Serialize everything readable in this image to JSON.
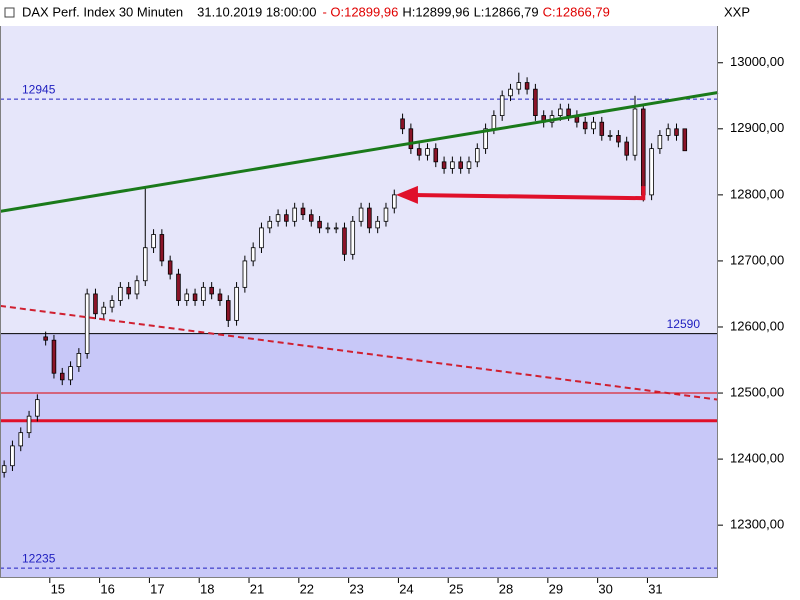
{
  "chart_data": {
    "type": "candlestick",
    "title": "DAX Perf. Index 30 Minuten",
    "timestamp": "31.10.2019 18:00:00",
    "ohlc_labels": [
      "- O:12899,96",
      "H:12899,96",
      "L:12866,79",
      "C:12866,79"
    ],
    "ohlc_label_colors": [
      "#e00000",
      "#000000",
      "#000000",
      "#e00000"
    ],
    "symbol": "XXP",
    "up_color": "#ffffff",
    "down_color": "#8a1428",
    "upper_background": "#e6e6fa",
    "lower_background": "#c8c8f8",
    "x": [
      0,
      1,
      2,
      3,
      4,
      5,
      6,
      7,
      8,
      9,
      10,
      11,
      12,
      13,
      14,
      15,
      16,
      17,
      18,
      19,
      20,
      21,
      22,
      23,
      24,
      25,
      26,
      27,
      28,
      29,
      30,
      31,
      32,
      33,
      34,
      35,
      36,
      37,
      38,
      39,
      40,
      41,
      42,
      43,
      44,
      45,
      46,
      47,
      48,
      49,
      50,
      51,
      52,
      53,
      54,
      55,
      56,
      57,
      58,
      59,
      60,
      61,
      62,
      63,
      64,
      65,
      66,
      67,
      68,
      69,
      70,
      71,
      72,
      73,
      74,
      75,
      76,
      77,
      78,
      79,
      80,
      81,
      82
    ],
    "open": [
      12380,
      12390,
      12420,
      12440,
      12465,
      12585,
      12580,
      12530,
      12520,
      12540,
      12560,
      12650,
      12620,
      12630,
      12640,
      12660,
      12650,
      12670,
      12720,
      12740,
      12700,
      12680,
      12640,
      12650,
      12640,
      12660,
      12650,
      12640,
      12610,
      12660,
      12700,
      12720,
      12750,
      12760,
      12770,
      12760,
      12780,
      12770,
      12760,
      12750,
      12750,
      12750,
      12710,
      12760,
      12780,
      12750,
      12760,
      12780,
      12915,
      12900,
      12870,
      12860,
      12870,
      12850,
      12840,
      12850,
      12840,
      12850,
      12870,
      12900,
      12920,
      12950,
      12960,
      12970,
      12960,
      12920,
      12910,
      12920,
      12930,
      12920,
      12910,
      12900,
      12910,
      12890,
      12890,
      12880,
      12860,
      12930,
      12800,
      12870,
      12890,
      12900,
      12899.96
    ],
    "high": [
      12398,
      12428,
      12448,
      12473,
      12498,
      12593,
      12588,
      12538,
      12548,
      12568,
      12658,
      12658,
      12638,
      12648,
      12668,
      12668,
      12678,
      12810,
      12748,
      12748,
      12708,
      12688,
      12658,
      12658,
      12668,
      12668,
      12658,
      12648,
      12668,
      12708,
      12728,
      12758,
      12768,
      12778,
      12778,
      12788,
      12788,
      12778,
      12768,
      12758,
      12758,
      12758,
      12768,
      12788,
      12788,
      12768,
      12788,
      12808,
      12923,
      12908,
      12878,
      12878,
      12878,
      12858,
      12858,
      12858,
      12858,
      12878,
      12908,
      12928,
      12958,
      12968,
      12985,
      12978,
      12968,
      12928,
      12928,
      12938,
      12938,
      12928,
      12918,
      12918,
      12918,
      12898,
      12898,
      12888,
      12950,
      12938,
      12878,
      12898,
      12908,
      12908,
      12899.96
    ],
    "low": [
      12372,
      12382,
      12412,
      12432,
      12457,
      12572,
      12522,
      12512,
      12512,
      12532,
      12552,
      12612,
      12612,
      12622,
      12632,
      12642,
      12642,
      12662,
      12712,
      12692,
      12672,
      12632,
      12632,
      12632,
      12632,
      12642,
      12632,
      12600,
      12602,
      12652,
      12692,
      12712,
      12742,
      12752,
      12752,
      12752,
      12762,
      12752,
      12742,
      12742,
      12742,
      12700,
      12702,
      12752,
      12742,
      12742,
      12752,
      12772,
      12892,
      12862,
      12852,
      12852,
      12842,
      12832,
      12832,
      12832,
      12832,
      12842,
      12862,
      12892,
      12912,
      12942,
      12952,
      12952,
      12912,
      12902,
      12902,
      12912,
      12912,
      12902,
      12892,
      12892,
      12882,
      12882,
      12872,
      12852,
      12852,
      12790,
      12792,
      12862,
      12882,
      12882,
      12866.79
    ],
    "close": [
      12390,
      12420,
      12440,
      12465,
      12490,
      12580,
      12530,
      12520,
      12540,
      12560,
      12650,
      12620,
      12630,
      12640,
      12660,
      12650,
      12670,
      12720,
      12740,
      12700,
      12680,
      12640,
      12650,
      12640,
      12660,
      12650,
      12640,
      12610,
      12660,
      12700,
      12720,
      12750,
      12760,
      12770,
      12760,
      12780,
      12770,
      12760,
      12750,
      12750,
      12750,
      12710,
      12760,
      12780,
      12750,
      12760,
      12780,
      12800,
      12900,
      12870,
      12860,
      12870,
      12850,
      12840,
      12850,
      12840,
      12850,
      12870,
      12900,
      12920,
      12950,
      12960,
      12970,
      12960,
      12920,
      12910,
      12920,
      12930,
      12920,
      12910,
      12900,
      12910,
      12890,
      12890,
      12880,
      12860,
      12930,
      12800,
      12870,
      12890,
      12900,
      12890,
      12866.79
    ],
    "xlim": [
      -0.5,
      86
    ],
    "xticks": [
      {
        "value": 5.5,
        "label": "15"
      },
      {
        "value": 11.5,
        "label": "16"
      },
      {
        "value": 17.5,
        "label": "17"
      },
      {
        "value": 23.5,
        "label": "18"
      },
      {
        "value": 29.5,
        "label": "21"
      },
      {
        "value": 35.5,
        "label": "22"
      },
      {
        "value": 41.5,
        "label": "23"
      },
      {
        "value": 47.5,
        "label": "24"
      },
      {
        "value": 53.5,
        "label": "25"
      },
      {
        "value": 59.5,
        "label": "28"
      },
      {
        "value": 65.5,
        "label": "29"
      },
      {
        "value": 71.5,
        "label": "30"
      },
      {
        "value": 77.5,
        "label": "31"
      }
    ],
    "ylim": [
      12220,
      13095
    ],
    "yticks": [
      {
        "value": 12300,
        "label": "12300,00"
      },
      {
        "value": 12400,
        "label": "12400,00"
      },
      {
        "value": 12500,
        "label": "12500,00"
      },
      {
        "value": 12600,
        "label": "12600,00"
      },
      {
        "value": 12700,
        "label": "12700,00"
      },
      {
        "value": 12800,
        "label": "12800,00"
      },
      {
        "value": 12900,
        "label": "12900,00"
      },
      {
        "value": 13000,
        "label": "13000,00"
      }
    ],
    "hlines": [
      {
        "value": 12945,
        "label": "12945",
        "color": "#2020c0",
        "dashed": true,
        "width": 1,
        "label_side": "left"
      },
      {
        "value": 12590,
        "label": "12590",
        "color": "#000000",
        "dashed": false,
        "width": 1,
        "label_side": "right"
      },
      {
        "value": 12235,
        "label": "12235",
        "color": "#2020c0",
        "dashed": true,
        "width": 1,
        "label_side": "left"
      },
      {
        "value": 12500,
        "color": "#e00000",
        "dashed": false,
        "width": 1
      },
      {
        "value": 12458,
        "color": "#e0102a",
        "dashed": false,
        "width": 3
      }
    ],
    "trendlines": [
      {
        "x": [
          -0.5,
          86
        ],
        "y": [
          12775,
          12955
        ],
        "color": "#1a7a1a",
        "dashed": false,
        "width": 3
      },
      {
        "x": [
          -0.5,
          86
        ],
        "y": [
          12632,
          12490
        ],
        "color": "#d02030",
        "dashed": true,
        "width": 2
      }
    ],
    "arrow": {
      "x": [
        77,
        47.2
      ],
      "y": [
        12795,
        12800
      ],
      "color": "#e0102a"
    }
  }
}
